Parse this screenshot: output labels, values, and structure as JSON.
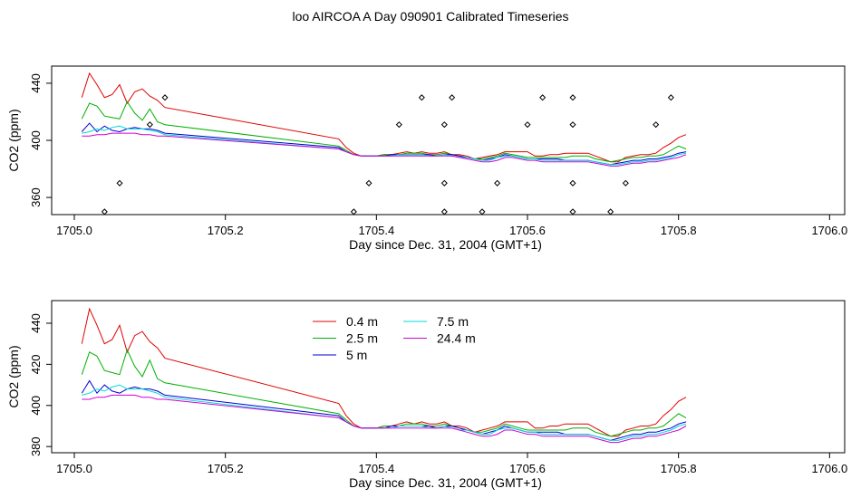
{
  "title": "loo AIRCOA A  Day 090901  Calibrated Timeseries",
  "colors": {
    "0.4 m": "#e00000",
    "2.5 m": "#00b000",
    "5 m": "#0000d0",
    "7.5 m": "#00d8d8",
    "24.4 m": "#d000d0",
    "points": "#000000"
  },
  "chart_data": [
    {
      "type": "line",
      "xlabel": "Day since Dec. 31, 2004 (GMT+1)",
      "ylabel": "CO2 (ppm)",
      "xlim": [
        1704.97,
        1706.02
      ],
      "ylim": [
        348,
        452
      ],
      "xticks": [
        1705.0,
        1705.2,
        1705.4,
        1705.6,
        1705.8,
        1706.0
      ],
      "xtick_labels": [
        "1705.0",
        "1705.2",
        "1705.4",
        "1705.6",
        "1705.8",
        "1706.0"
      ],
      "yticks": [
        360,
        400,
        440
      ],
      "ytick_labels": [
        "360",
        "400",
        "440"
      ],
      "x": [
        1705.01,
        1705.02,
        1705.03,
        1705.04,
        1705.05,
        1705.06,
        1705.07,
        1705.08,
        1705.09,
        1705.1,
        1705.11,
        1705.12,
        1705.35,
        1705.36,
        1705.37,
        1705.38,
        1705.39,
        1705.4,
        1705.41,
        1705.42,
        1705.43,
        1705.44,
        1705.45,
        1705.46,
        1705.47,
        1705.48,
        1705.49,
        1705.5,
        1705.51,
        1705.52,
        1705.53,
        1705.54,
        1705.55,
        1705.56,
        1705.57,
        1705.58,
        1705.59,
        1705.6,
        1705.61,
        1705.62,
        1705.63,
        1705.64,
        1705.65,
        1705.66,
        1705.67,
        1705.68,
        1705.69,
        1705.7,
        1705.71,
        1705.72,
        1705.73,
        1705.74,
        1705.75,
        1705.76,
        1705.77,
        1705.78,
        1705.79,
        1705.8,
        1705.81
      ],
      "series": [
        {
          "name": "0.4 m",
          "color_key": "0.4 m",
          "values": [
            430,
            447,
            439,
            430,
            432,
            439,
            426,
            434,
            436,
            431,
            428,
            423,
            401,
            395,
            391,
            389,
            389,
            389,
            390,
            390,
            391,
            392,
            391,
            392,
            391,
            391,
            392,
            390,
            390,
            389,
            387,
            388,
            389,
            390,
            392,
            392,
            392,
            392,
            389,
            389,
            390,
            390,
            391,
            391,
            391,
            391,
            389,
            387,
            385,
            385,
            388,
            389,
            390,
            390,
            391,
            395,
            398,
            402,
            404
          ]
        },
        {
          "name": "2.5 m",
          "color_key": "2.5 m",
          "values": [
            415,
            426,
            424,
            417,
            416,
            415,
            427,
            419,
            414,
            422,
            413,
            411,
            396,
            393,
            390,
            389,
            389,
            389,
            390,
            390,
            390,
            391,
            391,
            391,
            390,
            390,
            391,
            390,
            389,
            388,
            387,
            387,
            388,
            389,
            391,
            390,
            389,
            388,
            388,
            388,
            388,
            388,
            388,
            389,
            389,
            389,
            387,
            386,
            385,
            386,
            387,
            388,
            388,
            389,
            389,
            390,
            393,
            396,
            394
          ]
        },
        {
          "name": "5 m",
          "color_key": "5 m",
          "values": [
            406,
            412,
            406,
            410,
            407,
            406,
            408,
            409,
            408,
            408,
            407,
            405,
            395,
            392,
            390,
            389,
            389,
            389,
            389,
            390,
            390,
            390,
            390,
            390,
            390,
            389,
            390,
            390,
            389,
            388,
            387,
            386,
            387,
            388,
            390,
            389,
            388,
            387,
            387,
            387,
            387,
            387,
            386,
            386,
            386,
            386,
            385,
            384,
            383,
            384,
            385,
            386,
            386,
            387,
            387,
            388,
            389,
            391,
            392
          ]
        },
        {
          "name": "7.5 m",
          "color_key": "7.5 m",
          "values": [
            405,
            406,
            408,
            407,
            409,
            410,
            408,
            408,
            408,
            407,
            406,
            404,
            394,
            392,
            390,
            389,
            389,
            389,
            389,
            389,
            390,
            390,
            390,
            390,
            389,
            389,
            390,
            389,
            388,
            388,
            387,
            386,
            386,
            388,
            389,
            389,
            388,
            387,
            387,
            386,
            386,
            386,
            386,
            386,
            386,
            386,
            385,
            384,
            383,
            383,
            384,
            385,
            385,
            386,
            386,
            387,
            388,
            390,
            391
          ]
        },
        {
          "name": "24.4 m",
          "color_key": "24.4 m",
          "values": [
            403,
            403,
            404,
            404,
            405,
            405,
            405,
            405,
            404,
            404,
            403,
            403,
            394,
            392,
            390,
            389,
            389,
            389,
            389,
            389,
            389,
            389,
            389,
            389,
            389,
            389,
            389,
            389,
            388,
            387,
            386,
            385,
            385,
            386,
            388,
            388,
            387,
            386,
            386,
            385,
            385,
            385,
            385,
            385,
            385,
            385,
            384,
            383,
            382,
            382,
            383,
            384,
            384,
            385,
            385,
            386,
            387,
            388,
            390
          ]
        }
      ],
      "points": [
        {
          "x": 1705.04,
          "y": 350
        },
        {
          "x": 1705.06,
          "y": 370
        },
        {
          "x": 1705.1,
          "y": 411
        },
        {
          "x": 1705.12,
          "y": 430
        },
        {
          "x": 1705.37,
          "y": 350
        },
        {
          "x": 1705.39,
          "y": 370
        },
        {
          "x": 1705.43,
          "y": 411
        },
        {
          "x": 1705.46,
          "y": 430
        },
        {
          "x": 1705.49,
          "y": 350
        },
        {
          "x": 1705.49,
          "y": 370
        },
        {
          "x": 1705.49,
          "y": 411
        },
        {
          "x": 1705.5,
          "y": 430
        },
        {
          "x": 1705.54,
          "y": 350
        },
        {
          "x": 1705.56,
          "y": 370
        },
        {
          "x": 1705.6,
          "y": 411
        },
        {
          "x": 1705.62,
          "y": 430
        },
        {
          "x": 1705.66,
          "y": 430
        },
        {
          "x": 1705.66,
          "y": 411
        },
        {
          "x": 1705.66,
          "y": 370
        },
        {
          "x": 1705.66,
          "y": 350
        },
        {
          "x": 1705.71,
          "y": 350
        },
        {
          "x": 1705.73,
          "y": 370
        },
        {
          "x": 1705.77,
          "y": 411
        },
        {
          "x": 1705.79,
          "y": 430
        }
      ]
    },
    {
      "type": "line",
      "xlabel": "Day since Dec. 31, 2004 (GMT+1)",
      "ylabel": "CO2 (ppm)",
      "xlim": [
        1704.97,
        1706.02
      ],
      "ylim": [
        377,
        451
      ],
      "xticks": [
        1705.0,
        1705.2,
        1705.4,
        1705.6,
        1705.8,
        1706.0
      ],
      "xtick_labels": [
        "1705.0",
        "1705.2",
        "1705.4",
        "1705.6",
        "1705.8",
        "1706.0"
      ],
      "yticks": [
        380,
        400,
        420,
        440
      ],
      "ytick_labels": [
        "380",
        "400",
        "420",
        "440"
      ],
      "legend": {
        "position": "top-center",
        "entries": [
          "0.4 m",
          "2.5 m",
          "5 m",
          "7.5 m",
          "24.4 m"
        ]
      },
      "series_from_panel": 0
    }
  ]
}
